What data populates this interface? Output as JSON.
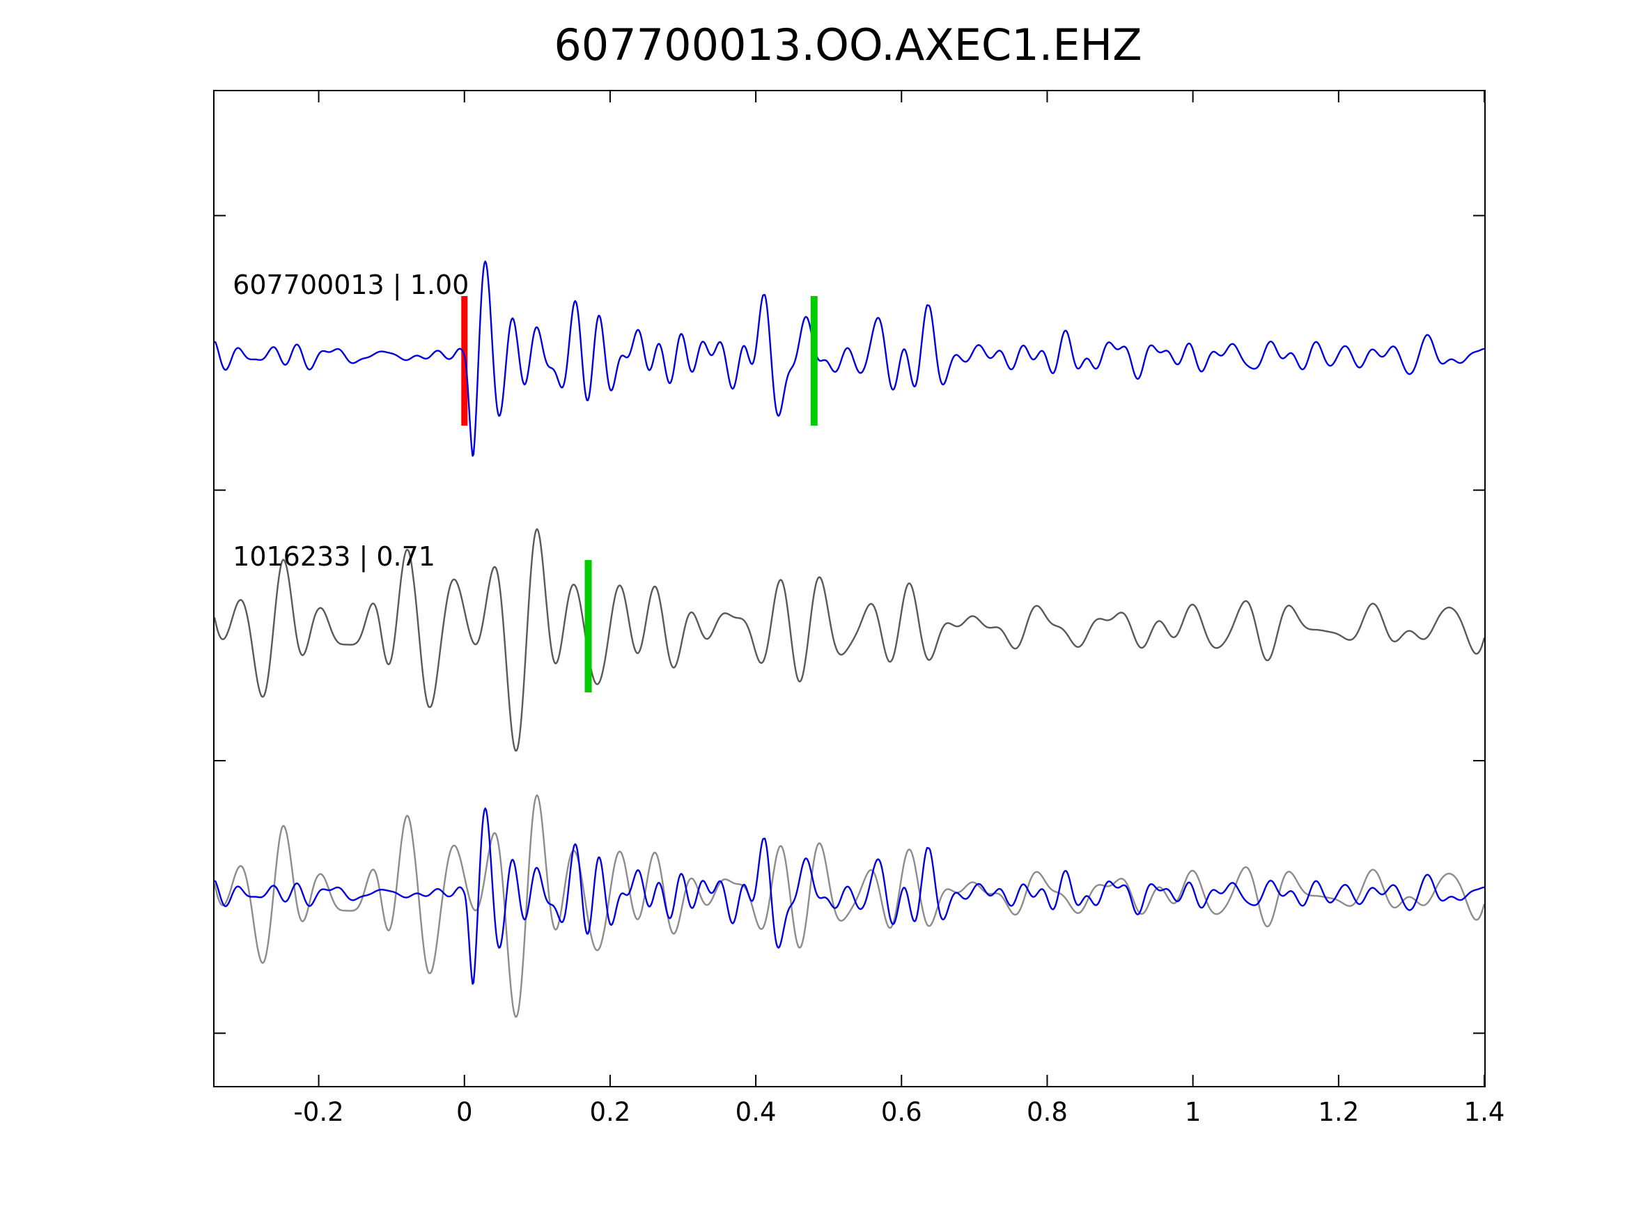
{
  "figure": {
    "title": "607700013.OO.AXEC1.EHZ"
  },
  "chart_data": {
    "type": "line",
    "title": "607700013.OO.AXEC1.EHZ",
    "xlabel": "",
    "ylabel": "",
    "x_range": [
      -0.343,
      1.4
    ],
    "grid": false,
    "legend": null,
    "x_ticks": [
      {
        "value": -0.2,
        "label": "-0.2"
      },
      {
        "value": 0.0,
        "label": "0"
      },
      {
        "value": 0.2,
        "label": "0.2"
      },
      {
        "value": 0.4,
        "label": "0.4"
      },
      {
        "value": 0.6,
        "label": "0.6"
      },
      {
        "value": 0.8,
        "label": "0.8"
      },
      {
        "value": 1.0,
        "label": "1"
      },
      {
        "value": 1.2,
        "label": "1.2"
      },
      {
        "value": 1.4,
        "label": "1.4"
      }
    ],
    "y_ticks": {
      "labels": [],
      "fractions": [
        0.125,
        0.401,
        0.673,
        0.947
      ]
    },
    "colors": {
      "template_trace": "#0000e0",
      "candidate_trace": "#595959",
      "candidate_overlay": "#8c8c8c",
      "reference_pick": "#ff0000",
      "aligned_pick": "#00cc00"
    },
    "rows": [
      {
        "label": "607700013 | 1.00",
        "label_x": -0.318,
        "markers": [
          {
            "x": 0.0,
            "color": "#ff0000",
            "name": "reference-pick-marker"
          },
          {
            "x": 0.48,
            "color": "#00cc00",
            "name": "pick-window-marker"
          }
        ],
        "traces": [
          {
            "name": "template-trace",
            "color": "#0000e0",
            "seed": 42,
            "freq_band": [
              12,
              36
            ],
            "envelope": [
              [
                -0.343,
                0.08
              ],
              [
                -0.02,
                0.08
              ],
              [
                0.0,
                0.14
              ],
              [
                0.012,
                1.0
              ],
              [
                0.05,
                0.82
              ],
              [
                0.1,
                0.62
              ],
              [
                0.18,
                0.46
              ],
              [
                0.28,
                0.3
              ],
              [
                0.36,
                0.24
              ],
              [
                0.44,
                0.4
              ],
              [
                0.52,
                0.32
              ],
              [
                0.62,
                0.3
              ],
              [
                0.72,
                0.2
              ],
              [
                0.85,
                0.15
              ],
              [
                1.0,
                0.12
              ],
              [
                1.15,
                0.13
              ],
              [
                1.32,
                0.16
              ],
              [
                1.4,
                0.12
              ]
            ]
          }
        ]
      },
      {
        "label": "1016233 | 0.71",
        "label_x": -0.318,
        "markers": [
          {
            "x": 0.17,
            "color": "#00cc00",
            "name": "aligned-pick-marker"
          }
        ],
        "traces": [
          {
            "name": "candidate-trace",
            "color": "#595959",
            "seed": 1337,
            "freq_band": [
              8,
              26
            ],
            "envelope": [
              [
                -0.343,
                0.75
              ],
              [
                -0.3,
                0.62
              ],
              [
                -0.25,
                0.7
              ],
              [
                -0.2,
                0.52
              ],
              [
                -0.15,
                0.68
              ],
              [
                -0.115,
                1.0
              ],
              [
                -0.07,
                0.55
              ],
              [
                -0.03,
                0.5
              ],
              [
                0.02,
                0.85
              ],
              [
                0.1,
                0.9
              ],
              [
                0.17,
                0.72
              ],
              [
                0.24,
                0.55
              ],
              [
                0.32,
                0.4
              ],
              [
                0.45,
                0.38
              ],
              [
                0.55,
                0.42
              ],
              [
                0.68,
                0.32
              ],
              [
                0.8,
                0.3
              ],
              [
                0.95,
                0.26
              ],
              [
                1.1,
                0.3
              ],
              [
                1.25,
                0.22
              ],
              [
                1.4,
                0.3
              ]
            ]
          }
        ]
      },
      {
        "label": "",
        "label_x": -0.318,
        "markers": [],
        "traces": [
          {
            "name": "candidate-overlay-trace",
            "color": "#8c8c8c",
            "seed": 1337,
            "freq_band": [
              8,
              26
            ],
            "envelope": [
              [
                -0.343,
                0.75
              ],
              [
                -0.3,
                0.62
              ],
              [
                -0.25,
                0.7
              ],
              [
                -0.2,
                0.52
              ],
              [
                -0.15,
                0.68
              ],
              [
                -0.115,
                1.0
              ],
              [
                -0.07,
                0.55
              ],
              [
                -0.03,
                0.5
              ],
              [
                0.02,
                0.85
              ],
              [
                0.1,
                0.9
              ],
              [
                0.17,
                0.72
              ],
              [
                0.24,
                0.55
              ],
              [
                0.32,
                0.4
              ],
              [
                0.45,
                0.38
              ],
              [
                0.55,
                0.42
              ],
              [
                0.68,
                0.32
              ],
              [
                0.8,
                0.3
              ],
              [
                0.95,
                0.26
              ],
              [
                1.1,
                0.3
              ],
              [
                1.25,
                0.22
              ],
              [
                1.4,
                0.3
              ]
            ]
          },
          {
            "name": "template-overlay-trace",
            "color": "#0000e0",
            "seed": 42,
            "freq_band": [
              12,
              36
            ],
            "envelope": [
              [
                -0.343,
                0.08
              ],
              [
                -0.02,
                0.08
              ],
              [
                0.0,
                0.14
              ],
              [
                0.012,
                1.0
              ],
              [
                0.05,
                0.82
              ],
              [
                0.1,
                0.62
              ],
              [
                0.18,
                0.46
              ],
              [
                0.28,
                0.3
              ],
              [
                0.36,
                0.24
              ],
              [
                0.44,
                0.4
              ],
              [
                0.52,
                0.32
              ],
              [
                0.62,
                0.3
              ],
              [
                0.72,
                0.2
              ],
              [
                0.85,
                0.15
              ],
              [
                1.0,
                0.12
              ],
              [
                1.15,
                0.13
              ],
              [
                1.32,
                0.16
              ],
              [
                1.4,
                0.12
              ]
            ]
          }
        ]
      }
    ]
  }
}
